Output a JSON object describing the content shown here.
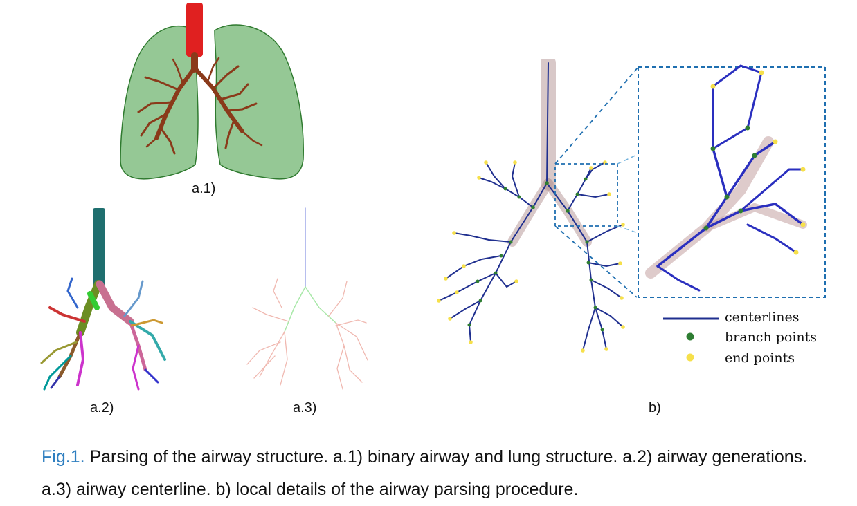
{
  "panels": {
    "a1_label": "a.1)",
    "a2_label": "a.2)",
    "a3_label": "a.3)",
    "b_label": "b)"
  },
  "legend": {
    "centerlines": "centerlines",
    "branch_points": "branch points",
    "end_points": "end points"
  },
  "caption": {
    "tag": "Fig.1.",
    "text": " Parsing of the airway structure. a.1)  binary airway and lung structure. a.2) airway generations. a.3) airway centerline. b) local details of the airway parsing procedure."
  },
  "colors": {
    "lung": "#3e9a3e",
    "trachea_a1": "#e02020",
    "bronchi_a1": "#8a3a1a",
    "trachea_a2": "#1f6f6f",
    "centerline": "#1f2f8f",
    "branch_point": "#2e7d32",
    "end_point": "#f6e04b",
    "airway_shadow": "#b89a9a",
    "caption_tag": "#2f7fc0",
    "zoom_box": "#1f6fb0"
  }
}
